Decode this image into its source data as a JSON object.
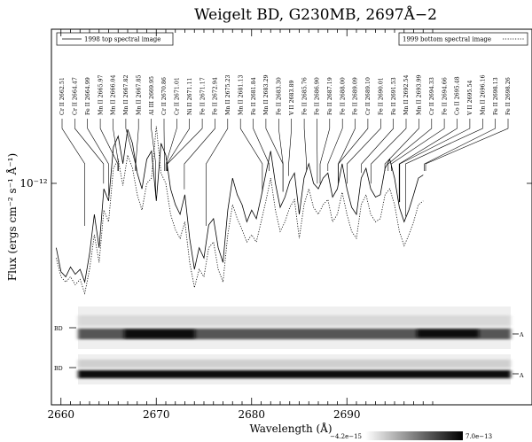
{
  "chart_data": {
    "type": "line",
    "title": "Weigelt BD, G230MB, 2697Å−2",
    "xlabel": "Wavelength (Å)",
    "ylabel": "Flux (ergs cm⁻² s⁻¹ Å⁻¹)",
    "y_scale": "log",
    "y_tick_label": "10⁻¹²",
    "xlim": [
      2659,
      2699.5
    ],
    "x_ticks": [
      2660,
      2670,
      2680,
      2690
    ],
    "legend": {
      "left": "1998 top spectral image",
      "right": "1999 bottom spectral image"
    },
    "series": [
      {
        "name": "1998 top spectral image",
        "style": "solid",
        "x": [
          2659.5,
          2660.0,
          2660.5,
          2661.0,
          2661.5,
          2662.0,
          2662.5,
          2663.0,
          2663.5,
          2664.0,
          2664.5,
          2665.0,
          2665.5,
          2666.0,
          2666.5,
          2667.0,
          2667.5,
          2668.0,
          2668.5,
          2669.0,
          2669.5,
          2670.0,
          2670.5,
          2671.0,
          2671.5,
          2672.0,
          2672.5,
          2673.0,
          2673.5,
          2674.0,
          2674.5,
          2675.0,
          2675.5,
          2676.0,
          2676.5,
          2677.0,
          2677.5,
          2678.0,
          2678.5,
          2679.0,
          2679.5,
          2680.0,
          2680.5,
          2681.0,
          2681.5,
          2682.0,
          2682.5,
          2683.0,
          2683.5,
          2684.0,
          2684.5,
          2685.0,
          2685.5,
          2686.0,
          2686.5,
          2687.0,
          2687.5,
          2688.0,
          2688.5,
          2689.0,
          2689.5,
          2690.0,
          2690.5,
          2691.0,
          2691.5,
          2692.0,
          2692.5,
          2693.0,
          2693.5,
          2694.0,
          2694.5,
          2695.0,
          2695.5,
          2696.0,
          2696.5,
          2697.0,
          2697.5,
          2698.0
        ],
        "values": [
          0.55,
          0.44,
          0.42,
          0.46,
          0.43,
          0.45,
          0.4,
          0.52,
          0.75,
          0.55,
          0.95,
          0.85,
          1.4,
          1.55,
          1.2,
          1.65,
          1.45,
          1.1,
          0.95,
          1.25,
          1.35,
          0.85,
          1.45,
          1.3,
          0.95,
          0.82,
          0.75,
          0.9,
          0.6,
          0.45,
          0.55,
          0.5,
          0.68,
          0.72,
          0.55,
          0.48,
          0.78,
          1.05,
          0.9,
          0.82,
          0.7,
          0.78,
          0.72,
          0.88,
          1.1,
          1.35,
          1.0,
          0.8,
          0.88,
          1.02,
          1.1,
          0.75,
          1.05,
          1.2,
          1.0,
          0.95,
          1.05,
          1.1,
          0.88,
          0.95,
          1.2,
          0.95,
          0.8,
          0.75,
          1.05,
          1.15,
          0.95,
          0.88,
          0.9,
          1.15,
          1.25,
          1.05,
          0.8,
          0.7,
          0.78,
          0.9,
          1.05,
          1.08
        ]
      },
      {
        "name": "1999 bottom spectral image",
        "style": "dotted",
        "x": [
          2659.5,
          2660.0,
          2660.5,
          2661.0,
          2661.5,
          2662.0,
          2662.5,
          2663.0,
          2663.5,
          2664.0,
          2664.5,
          2665.0,
          2665.5,
          2666.0,
          2666.5,
          2667.0,
          2667.5,
          2668.0,
          2668.5,
          2669.0,
          2669.5,
          2670.0,
          2670.5,
          2671.0,
          2671.5,
          2672.0,
          2672.5,
          2673.0,
          2673.5,
          2674.0,
          2674.5,
          2675.0,
          2675.5,
          2676.0,
          2676.5,
          2677.0,
          2677.5,
          2678.0,
          2678.5,
          2679.0,
          2679.5,
          2680.0,
          2680.5,
          2681.0,
          2681.5,
          2682.0,
          2682.5,
          2683.0,
          2683.5,
          2684.0,
          2684.5,
          2685.0,
          2685.5,
          2686.0,
          2686.5,
          2687.0,
          2687.5,
          2688.0,
          2688.5,
          2689.0,
          2689.5,
          2690.0,
          2690.5,
          2691.0,
          2691.5,
          2692.0,
          2692.5,
          2693.0,
          2693.5,
          2694.0,
          2694.5,
          2695.0,
          2695.5,
          2696.0,
          2696.5,
          2697.0,
          2697.5,
          2698.0
        ],
        "values": [
          0.5,
          0.42,
          0.4,
          0.42,
          0.39,
          0.41,
          0.36,
          0.45,
          0.62,
          0.48,
          0.78,
          0.7,
          1.15,
          1.25,
          0.98,
          1.3,
          1.15,
          0.9,
          0.78,
          1.0,
          1.05,
          1.7,
          1.1,
          1.0,
          0.75,
          0.65,
          0.6,
          0.7,
          0.48,
          0.38,
          0.45,
          0.42,
          0.55,
          0.58,
          0.45,
          0.4,
          0.62,
          0.82,
          0.72,
          0.65,
          0.58,
          0.62,
          0.58,
          0.7,
          0.85,
          1.05,
          0.78,
          0.64,
          0.7,
          0.8,
          0.86,
          0.6,
          0.82,
          0.95,
          0.8,
          0.75,
          0.82,
          0.86,
          0.7,
          0.75,
          0.92,
          0.75,
          0.64,
          0.6,
          0.82,
          0.9,
          0.75,
          0.7,
          0.72,
          0.9,
          0.95,
          0.82,
          0.64,
          0.56,
          0.62,
          0.7,
          0.82,
          0.85
        ]
      }
    ],
    "line_ids": [
      {
        "label": "Cr II 2662.51",
        "x": 2662.51
      },
      {
        "label": "Cr II 2664.47",
        "x": 2664.47
      },
      {
        "label": "Fe II 2664.99",
        "x": 2664.99
      },
      {
        "label": "Mn II 2665.97",
        "x": 2665.97
      },
      {
        "label": "Mn II 2666.04",
        "x": 2666.04
      },
      {
        "label": "Mn II 2667.82",
        "x": 2667.82
      },
      {
        "label": "Mn II 2667.85",
        "x": 2667.85
      },
      {
        "label": "Al III 2669.95",
        "x": 2669.95
      },
      {
        "label": "Cr II 2670.86",
        "x": 2670.86
      },
      {
        "label": "Cr II 2671.01",
        "x": 2671.01
      },
      {
        "label": "Ni II 2671.11",
        "x": 2671.11
      },
      {
        "label": "Fe II 2671.17",
        "x": 2671.17
      },
      {
        "label": "Fe II 2672.94",
        "x": 2672.94
      },
      {
        "label": "Mn II 2675.23",
        "x": 2675.23
      },
      {
        "label": "Mn II 2681.13",
        "x": 2681.13
      },
      {
        "label": "Fe II 2681.84",
        "x": 2681.84
      },
      {
        "label": "Mn II 2683.29",
        "x": 2683.29
      },
      {
        "label": "Fe II 2683.30",
        "x": 2683.3
      },
      {
        "label": "V II 2683.89",
        "x": 2683.89
      },
      {
        "label": "Fe II 2685.76",
        "x": 2685.76
      },
      {
        "label": "Fe II 2686.90",
        "x": 2686.9
      },
      {
        "label": "Fe II 2687.19",
        "x": 2687.19
      },
      {
        "label": "Fe II 2688.00",
        "x": 2688.0
      },
      {
        "label": "Fe II 2689.09",
        "x": 2689.09
      },
      {
        "label": "Cr II 2689.10",
        "x": 2689.1
      },
      {
        "label": "Fe II 2690.01",
        "x": 2690.01
      },
      {
        "label": "Fe II 2691.53",
        "x": 2691.53
      },
      {
        "label": "Mn II 2692.54",
        "x": 2692.54
      },
      {
        "label": "Mn II 2693.99",
        "x": 2693.99
      },
      {
        "label": "Cr II 2694.33",
        "x": 2694.33
      },
      {
        "label": "Fe II 2694.66",
        "x": 2694.66
      },
      {
        "label": "Co II 2695.48",
        "x": 2695.48
      },
      {
        "label": "V II 2695.54",
        "x": 2695.54
      },
      {
        "label": "Mn II 2696.16",
        "x": 2696.16
      },
      {
        "label": "Fe II 2698.13",
        "x": 2698.13
      },
      {
        "label": "Fe II 2698.26",
        "x": 2698.26
      }
    ],
    "spectral_images": {
      "top_label_left": "BD",
      "top_label_right": "A",
      "bottom_label_left": "BD",
      "bottom_label_right": "A"
    },
    "colorbar": {
      "min_label": "−4.2e−15",
      "max_label": "7.0e−13"
    }
  }
}
